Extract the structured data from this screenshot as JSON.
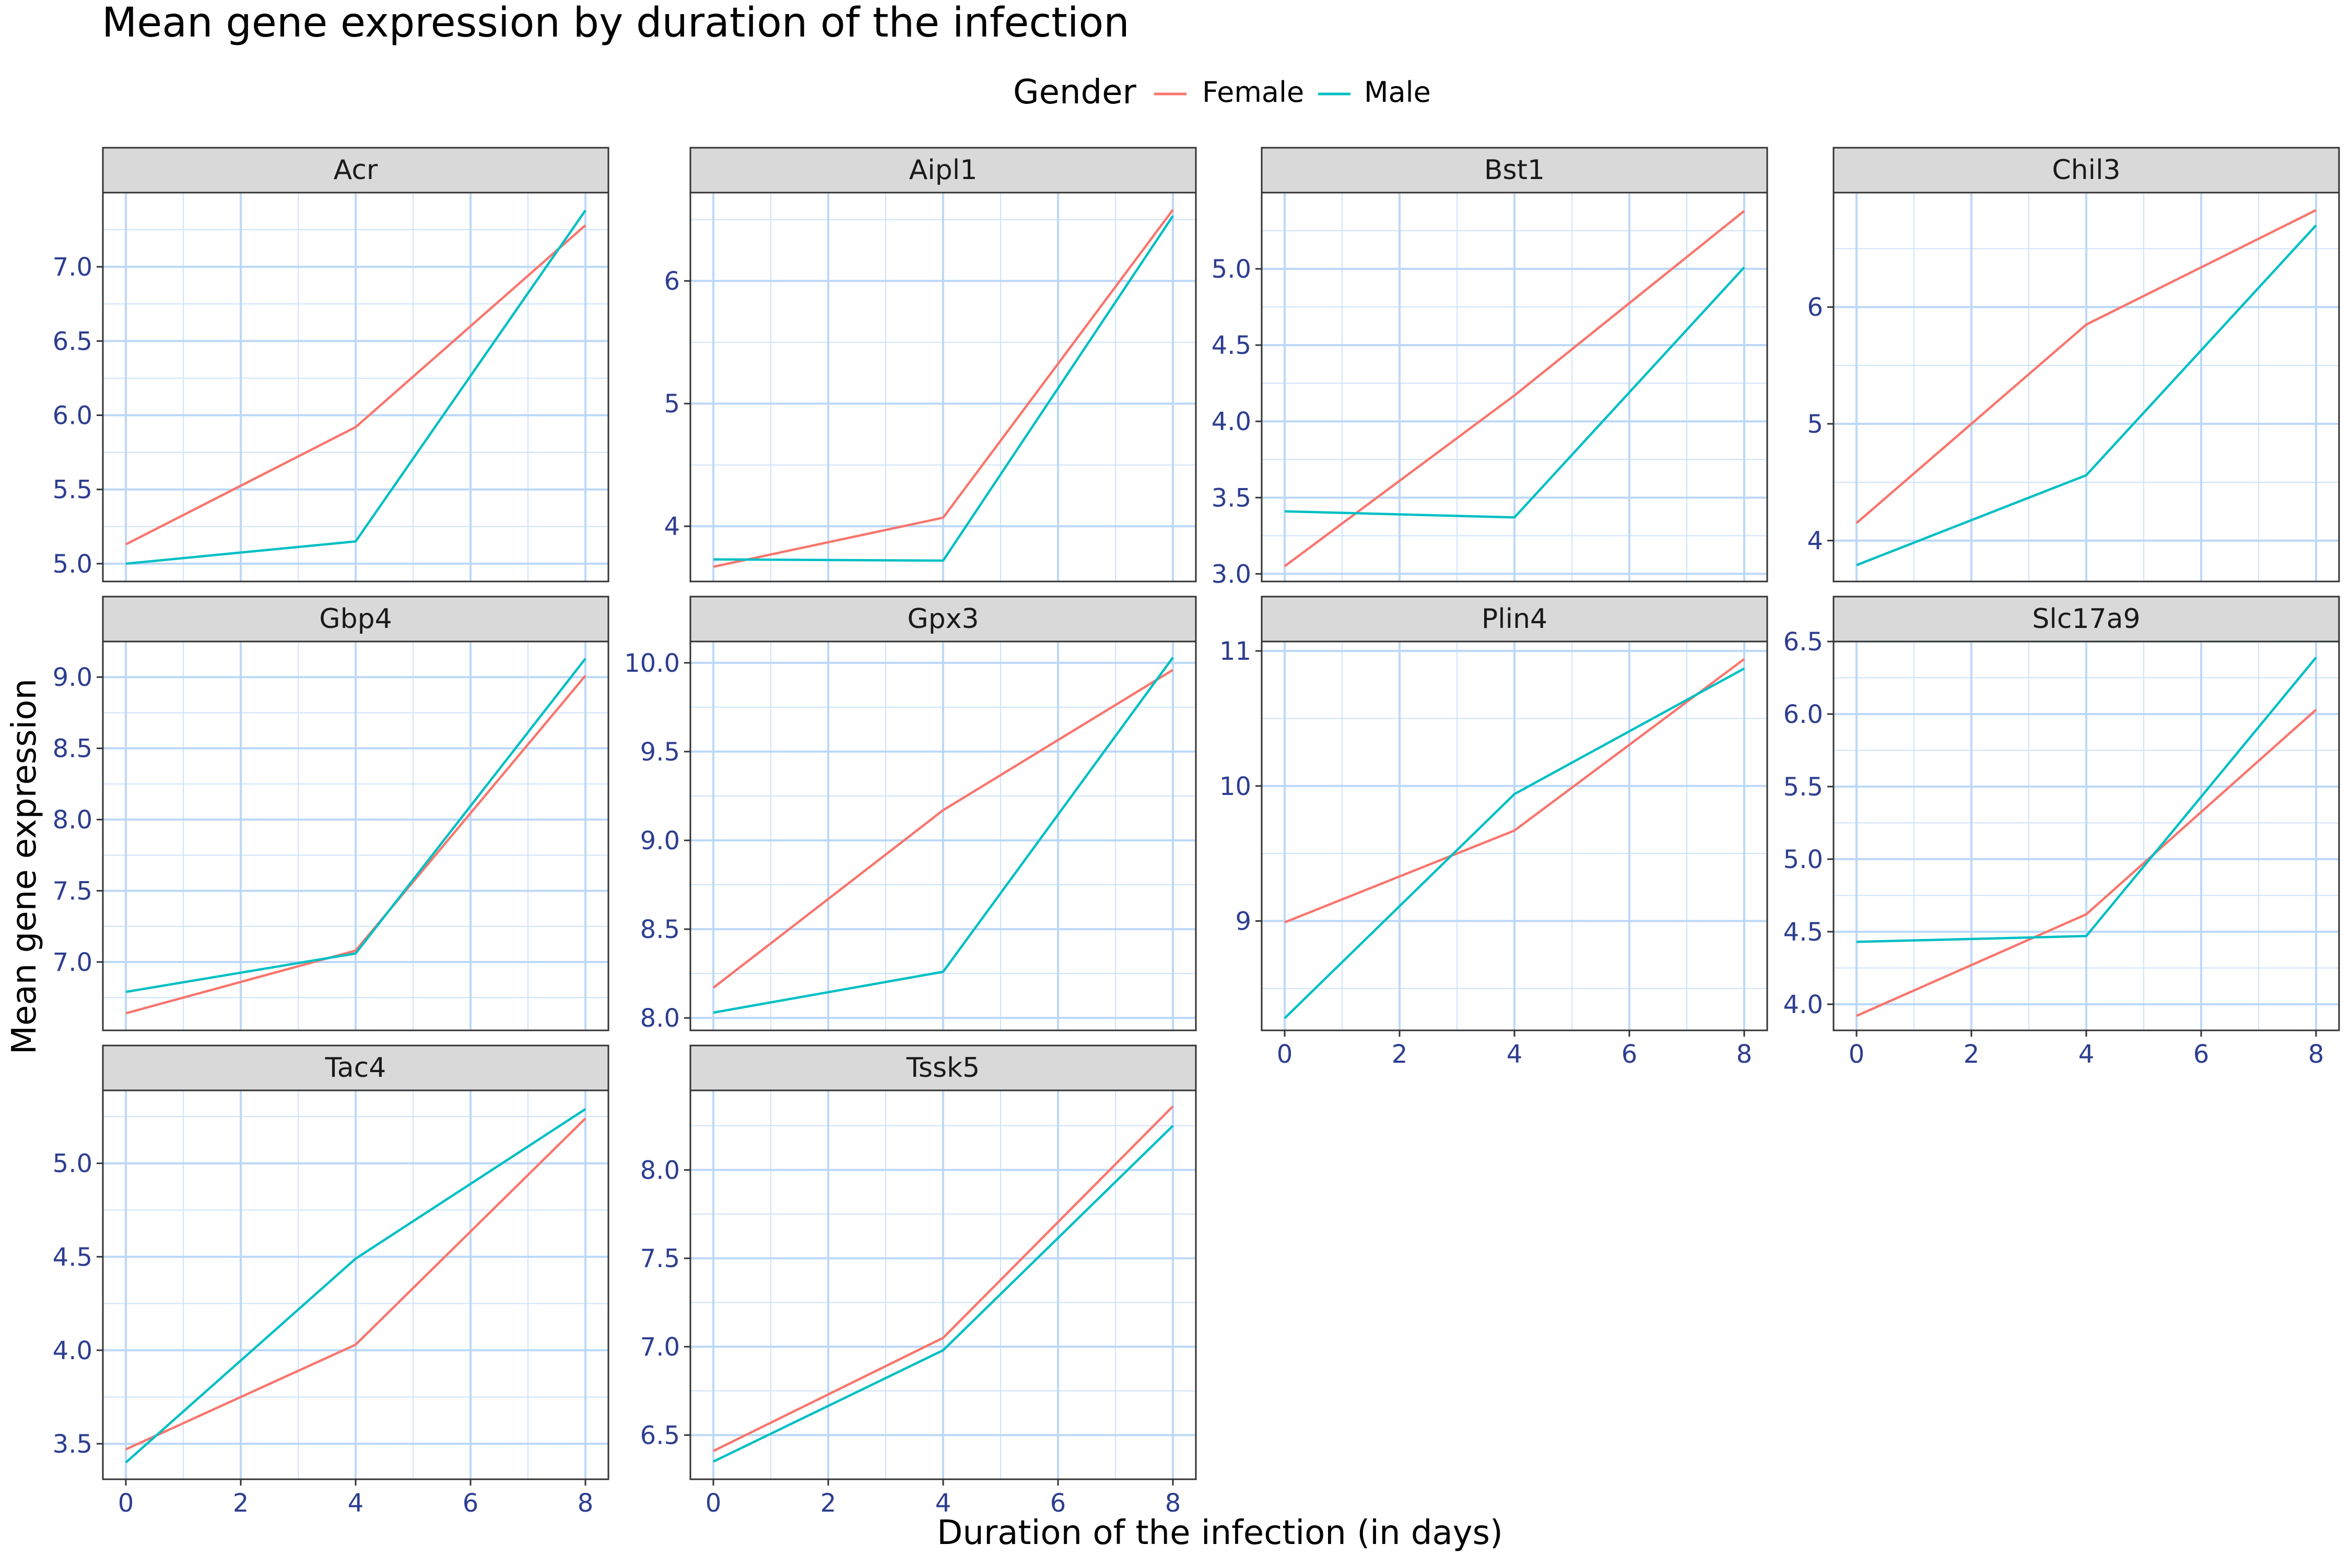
{
  "chart_data": {
    "type": "line",
    "title": "Mean gene expression by duration of the infection",
    "xlabel": "Duration of the infection (in days)",
    "ylabel": "Mean gene expression",
    "legend": {
      "title": "Gender",
      "placement": "top",
      "entries": [
        {
          "name": "Female",
          "color": "#F8766D"
        },
        {
          "name": "Male",
          "color": "#00BFC4"
        }
      ]
    },
    "x": [
      0,
      4,
      8
    ],
    "x_ticks": [
      0,
      2,
      4,
      6,
      8
    ],
    "x_tick_labels": [
      "0",
      "2",
      "4",
      "6",
      "8"
    ],
    "xlim": [
      -0.4,
      8.4
    ],
    "grid": true,
    "panels": [
      {
        "title": "Acr",
        "ylim": [
          4.88,
          7.5
        ],
        "y_ticks": [
          5.0,
          5.5,
          6.0,
          6.5,
          7.0
        ],
        "y_tick_labels": [
          "5.0",
          "5.5",
          "6.0",
          "6.5",
          "7.0"
        ],
        "series": [
          {
            "name": "Female",
            "values": [
              5.13,
              5.92,
              7.28
            ]
          },
          {
            "name": "Male",
            "values": [
              5.0,
              5.15,
              7.38
            ]
          }
        ]
      },
      {
        "title": "Aipl1",
        "ylim": [
          3.55,
          6.72
        ],
        "y_ticks": [
          4,
          5,
          6
        ],
        "y_tick_labels": [
          "4",
          "5",
          "6"
        ],
        "series": [
          {
            "name": "Female",
            "values": [
              3.67,
              4.07,
              6.58
            ]
          },
          {
            "name": "Male",
            "values": [
              3.73,
              3.72,
              6.53
            ]
          }
        ]
      },
      {
        "title": "Bst1",
        "ylim": [
          2.95,
          5.5
        ],
        "y_ticks": [
          3.0,
          3.5,
          4.0,
          4.5,
          5.0
        ],
        "y_tick_labels": [
          "3.0",
          "3.5",
          "4.0",
          "4.5",
          "5.0"
        ],
        "series": [
          {
            "name": "Female",
            "values": [
              3.05,
              4.17,
              5.38
            ]
          },
          {
            "name": "Male",
            "values": [
              3.41,
              3.37,
              5.01
            ]
          }
        ]
      },
      {
        "title": "Chil3",
        "ylim": [
          3.65,
          6.98
        ],
        "y_ticks": [
          4,
          5,
          6
        ],
        "y_tick_labels": [
          "4",
          "5",
          "6"
        ],
        "series": [
          {
            "name": "Female",
            "values": [
              4.15,
              5.85,
              6.83
            ]
          },
          {
            "name": "Male",
            "values": [
              3.79,
              4.56,
              6.7
            ]
          }
        ]
      },
      {
        "title": "Gbp4",
        "ylim": [
          6.52,
          9.25
        ],
        "y_ticks": [
          7.0,
          7.5,
          8.0,
          8.5,
          9.0
        ],
        "y_tick_labels": [
          "7.0",
          "7.5",
          "8.0",
          "8.5",
          "9.0"
        ],
        "series": [
          {
            "name": "Female",
            "values": [
              6.64,
              7.08,
              9.01
            ]
          },
          {
            "name": "Male",
            "values": [
              6.79,
              7.06,
              9.13
            ]
          }
        ]
      },
      {
        "title": "Gpx3",
        "ylim": [
          7.93,
          10.12
        ],
        "y_ticks": [
          8.0,
          8.5,
          9.0,
          9.5,
          10.0
        ],
        "y_tick_labels": [
          "8.0",
          "8.5",
          "9.0",
          "9.5",
          "10.0"
        ],
        "series": [
          {
            "name": "Female",
            "values": [
              8.17,
              9.17,
              9.96
            ]
          },
          {
            "name": "Male",
            "values": [
              8.03,
              8.26,
              10.03
            ]
          }
        ]
      },
      {
        "title": "Plin4",
        "ylim": [
          8.19,
          11.07
        ],
        "y_ticks": [
          9,
          10,
          11
        ],
        "y_tick_labels": [
          "9",
          "10",
          "11"
        ],
        "series": [
          {
            "name": "Female",
            "values": [
              8.99,
              9.67,
              10.94
            ]
          },
          {
            "name": "Male",
            "values": [
              8.28,
              9.94,
              10.87
            ]
          }
        ]
      },
      {
        "title": "Slc17a9",
        "ylim": [
          3.82,
          6.5
        ],
        "y_ticks": [
          4.0,
          4.5,
          5.0,
          5.5,
          6.0,
          6.5
        ],
        "y_tick_labels": [
          "4.0",
          "4.5",
          "5.0",
          "5.5",
          "6.0",
          "6.5"
        ],
        "series": [
          {
            "name": "Female",
            "values": [
              3.92,
              4.62,
              6.03
            ]
          },
          {
            "name": "Male",
            "values": [
              4.43,
              4.47,
              6.39
            ]
          }
        ]
      },
      {
        "title": "Tac4",
        "ylim": [
          3.31,
          5.39
        ],
        "y_ticks": [
          3.5,
          4.0,
          4.5,
          5.0
        ],
        "y_tick_labels": [
          "3.5",
          "4.0",
          "4.5",
          "5.0"
        ],
        "series": [
          {
            "name": "Female",
            "values": [
              3.47,
              4.03,
              5.24
            ]
          },
          {
            "name": "Male",
            "values": [
              3.4,
              4.49,
              5.29
            ]
          }
        ]
      },
      {
        "title": "Tssk5",
        "ylim": [
          6.25,
          8.45
        ],
        "y_ticks": [
          6.5,
          7.0,
          7.5,
          8.0
        ],
        "y_tick_labels": [
          "6.5",
          "7.0",
          "7.5",
          "8.0"
        ],
        "series": [
          {
            "name": "Female",
            "values": [
              6.41,
              7.05,
              8.36
            ]
          },
          {
            "name": "Male",
            "values": [
              6.35,
              6.98,
              8.25
            ]
          }
        ]
      }
    ]
  }
}
